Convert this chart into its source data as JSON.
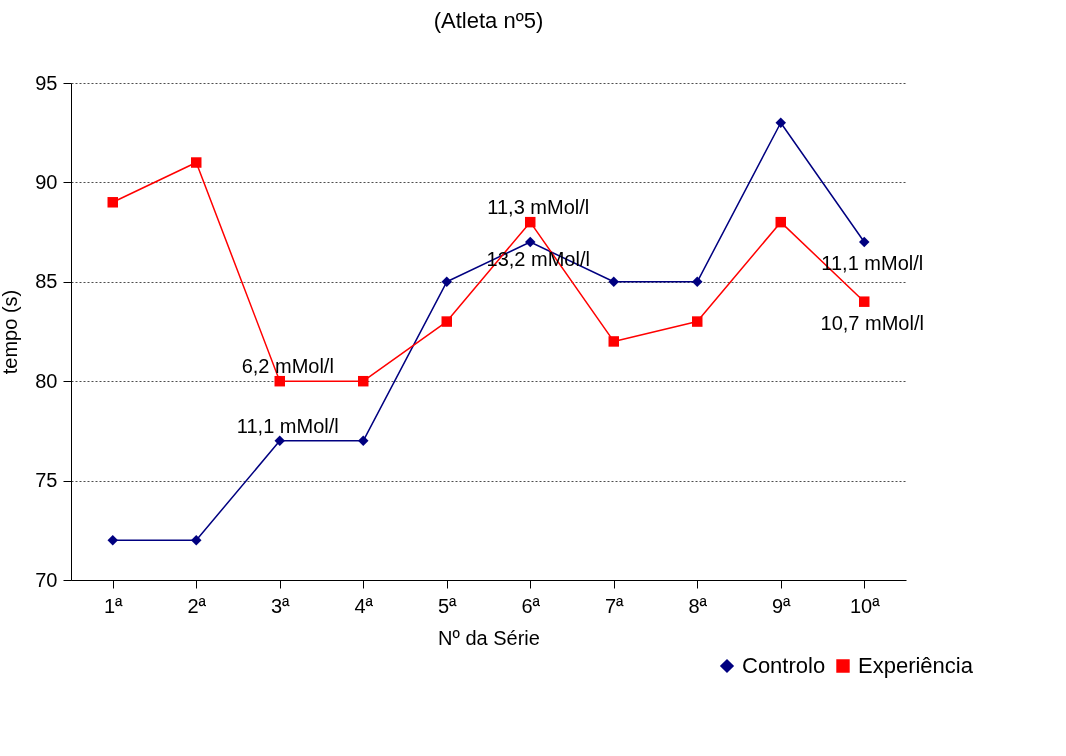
{
  "chart_data": {
    "type": "line",
    "title": "(Atleta nº5)",
    "xlabel": "Nº da Série",
    "ylabel": "tempo (s)",
    "categories": [
      "1ª",
      "2ª",
      "3ª",
      "4ª",
      "5ª",
      "6ª",
      "7ª",
      "8ª",
      "9ª",
      "10ª"
    ],
    "series": [
      {
        "name": "Controlo",
        "color": "#000080",
        "marker": "diamond",
        "values": [
          72,
          72,
          77,
          77,
          85,
          87,
          85,
          85,
          93,
          87
        ]
      },
      {
        "name": "Experiência",
        "color": "#ff0000",
        "marker": "square",
        "values": [
          89,
          91,
          80,
          80,
          83,
          88,
          82,
          83,
          88,
          84
        ]
      }
    ],
    "ylim": [
      70,
      95
    ],
    "yticks": [
      70,
      75,
      80,
      85,
      90,
      95
    ],
    "grid": "y",
    "legend": "bottom right",
    "annotations": [
      {
        "text": "6,2 mMol/l",
        "x": "3ª",
        "y": 80
      },
      {
        "text": "11,1 mMol/l",
        "x": "3ª",
        "y": 77
      },
      {
        "text": "11,3 mMol/l",
        "x": "6ª",
        "y": 88
      },
      {
        "text": "13,2 mMol/l",
        "x": "6ª",
        "y": 87
      },
      {
        "text": "11,1 mMol/l",
        "x": "10ª",
        "y": 87
      },
      {
        "text": "10,7 mMol/l",
        "x": "10ª",
        "y": 84
      }
    ]
  }
}
